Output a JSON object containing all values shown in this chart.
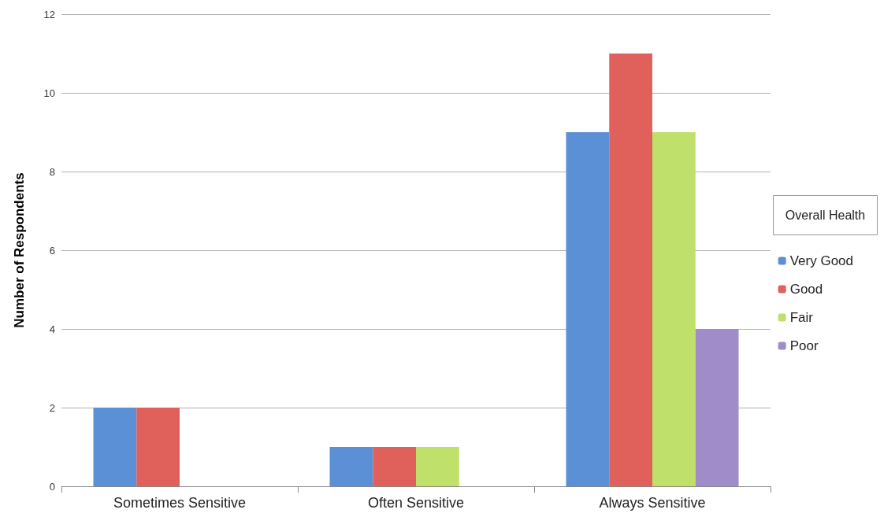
{
  "chart_data": {
    "type": "bar",
    "ylabel": "Number of Respondents",
    "legend_title": "Overall Health",
    "categories": [
      "Sometimes Sensitive",
      "Often Sensitive",
      "Always Sensitive"
    ],
    "series": [
      {
        "name": "Very Good",
        "color": "#5b8fd6",
        "values": [
          2,
          1,
          9
        ]
      },
      {
        "name": "Good",
        "color": "#e0605c",
        "values": [
          2,
          1,
          11
        ]
      },
      {
        "name": "Fair",
        "color": "#bfe06a",
        "values": [
          0,
          1,
          9
        ]
      },
      {
        "name": "Poor",
        "color": "#a08cc8",
        "values": [
          0,
          0,
          4
        ]
      }
    ],
    "ylim": [
      0,
      12
    ],
    "yticks": [
      0,
      2,
      4,
      6,
      8,
      10,
      12
    ],
    "grid": "y",
    "legend": "right"
  }
}
